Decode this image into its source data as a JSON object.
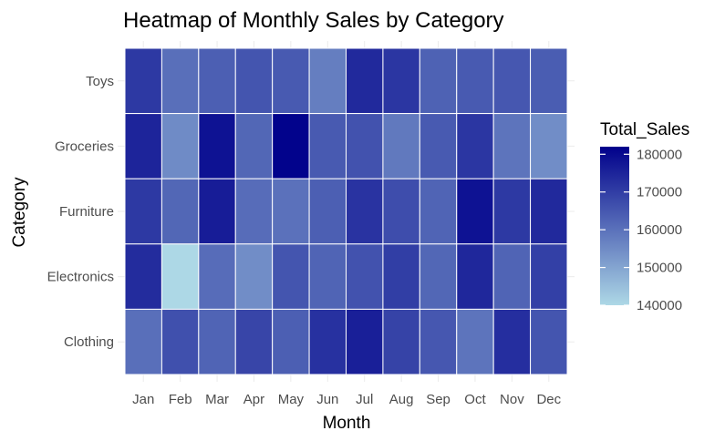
{
  "chart_data": {
    "type": "heatmap",
    "title": "Heatmap of Monthly Sales by Category",
    "xlabel": "Month",
    "ylabel": "Category",
    "x": [
      "Jan",
      "Feb",
      "Mar",
      "Apr",
      "May",
      "Jun",
      "Jul",
      "Aug",
      "Sep",
      "Oct",
      "Nov",
      "Dec"
    ],
    "y": [
      "Toys",
      "Groceries",
      "Furniture",
      "Electronics",
      "Clothing"
    ],
    "values": [
      [
        171000,
        160500,
        163500,
        165500,
        164500,
        157500,
        174000,
        171500,
        163000,
        164500,
        165000,
        164000
      ],
      [
        175000,
        155000,
        178500,
        162000,
        181500,
        164500,
        166000,
        158500,
        164500,
        171500,
        159500,
        154500
      ],
      [
        171000,
        162000,
        176500,
        161000,
        160000,
        163500,
        172000,
        167000,
        162500,
        178500,
        171000,
        174000
      ],
      [
        173500,
        140000,
        161000,
        154500,
        165500,
        162500,
        166000,
        170000,
        162000,
        174500,
        162500,
        169500
      ],
      [
        160500,
        166500,
        162500,
        168500,
        163500,
        172500,
        176000,
        169000,
        165000,
        159500,
        173000,
        165500
      ]
    ],
    "legend": {
      "title": "Total_Sales",
      "ticks": [
        "180000",
        "170000",
        "160000",
        "150000",
        "140000"
      ],
      "tick_values": [
        180000,
        170000,
        160000,
        150000,
        140000
      ],
      "min": 140000,
      "max": 182000,
      "low_color": "#add8e6",
      "high_color": "#00008b",
      "placement": "right"
    },
    "grid": true
  }
}
